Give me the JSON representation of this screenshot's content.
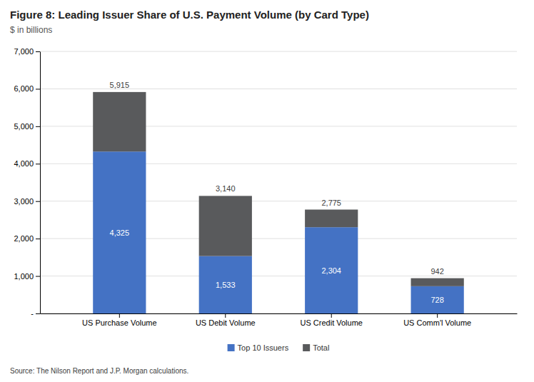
{
  "chart_data": {
    "type": "bar",
    "stacked": true,
    "title": "Figure 8: Leading Issuer Share of U.S. Payment Volume (by Card Type)",
    "subtitle": "$ in billions",
    "categories": [
      "US Purchase Volume",
      "US Debit Volume",
      "US Credit Volume",
      "US Comm'l Volume"
    ],
    "series": [
      {
        "name": "Top 10 Issuers",
        "color": "#4472C4",
        "values": [
          4325,
          1533,
          2304,
          728
        ],
        "data_labels": true,
        "value_labels": [
          "4,325",
          "1,533",
          "2,304",
          "728"
        ]
      },
      {
        "name": "Total",
        "color": "#595A5C",
        "values": [
          1590,
          1607,
          471,
          214
        ]
      }
    ],
    "totals": [
      5915,
      3140,
      2775,
      942
    ],
    "total_labels": [
      "5,915",
      "3,140",
      "2,775",
      "942"
    ],
    "ylim": [
      0,
      7000
    ],
    "yticks": [
      {
        "value": 0,
        "label": "-"
      },
      {
        "value": 1000,
        "label": "1,000"
      },
      {
        "value": 2000,
        "label": "2,000"
      },
      {
        "value": 3000,
        "label": "3,000"
      },
      {
        "value": 4000,
        "label": "4,000"
      },
      {
        "value": 5000,
        "label": "5,000"
      },
      {
        "value": 6000,
        "label": "6,000"
      },
      {
        "value": 7000,
        "label": "7,000"
      }
    ],
    "grid": true,
    "legend": "bottom",
    "annotations": [
      "Source: The Nilson Report and J.P. Morgan calculations."
    ]
  }
}
